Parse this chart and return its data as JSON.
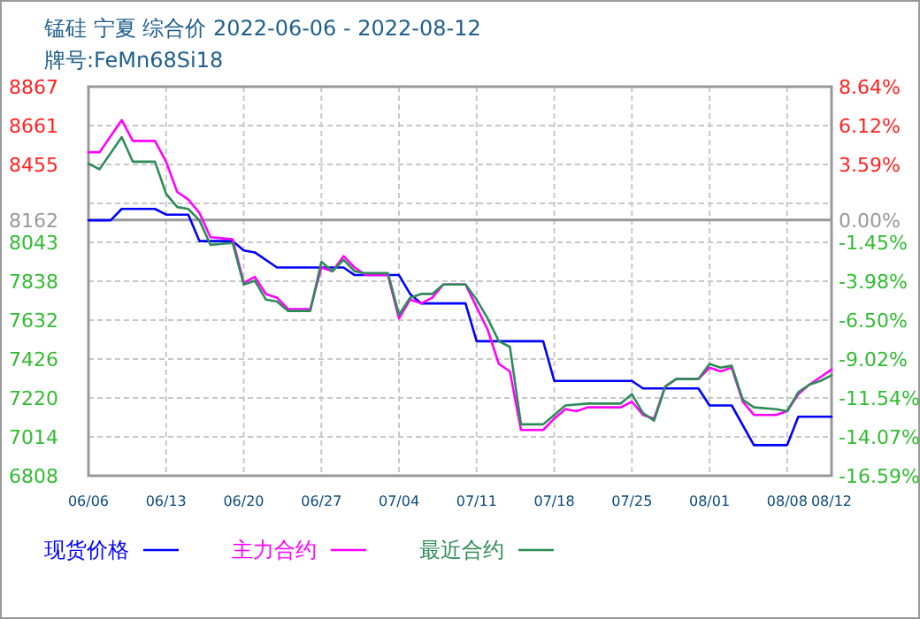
{
  "chart_data": {
    "type": "line",
    "title": "锰硅 宁夏 综合价 2022-06-06 - 2022-08-12",
    "subtitle": "牌号:FeMn68Si18",
    "xlim": [
      "2022-06-06",
      "2022-08-12"
    ],
    "xticks": [
      {
        "value": "2022-06-06",
        "label": "06/06"
      },
      {
        "value": "2022-06-13",
        "label": "06/13"
      },
      {
        "value": "2022-06-20",
        "label": "06/20"
      },
      {
        "value": "2022-06-27",
        "label": "06/27"
      },
      {
        "value": "2022-07-04",
        "label": "07/04"
      },
      {
        "value": "2022-07-11",
        "label": "07/11"
      },
      {
        "value": "2022-07-18",
        "label": "07/18"
      },
      {
        "value": "2022-07-25",
        "label": "07/25"
      },
      {
        "value": "2022-08-01",
        "label": "08/01"
      },
      {
        "value": "2022-08-08",
        "label": "08/08"
      },
      {
        "value": "2022-08-12",
        "label": "08/12"
      }
    ],
    "ylim": [
      6808,
      8867
    ],
    "yticks": [
      6808,
      7014,
      7220,
      7426,
      7632,
      7838,
      8043,
      8162,
      {
        "value": 8249,
        "label": null
      },
      8455,
      8661,
      8867
    ],
    "y2lim": [
      -16.59,
      8.64
    ],
    "y2ticks": [
      {
        "value": -16.59,
        "label": "-16.59%"
      },
      {
        "value": -14.07,
        "label": "-14.07%"
      },
      {
        "value": -11.54,
        "label": "-11.54%"
      },
      {
        "value": -9.02,
        "label": "-9.02%"
      },
      {
        "value": -6.5,
        "label": "-6.50%"
      },
      {
        "value": -3.98,
        "label": "-3.98%"
      },
      {
        "value": -1.45,
        "label": "-1.45%"
      },
      {
        "value": 0,
        "label": "0.00%"
      },
      {
        "value": 3.59,
        "label": "3.59%"
      },
      {
        "value": 6.12,
        "label": "6.12%"
      },
      {
        "value": 8.64,
        "label": "8.64%"
      }
    ],
    "ref_lines": [
      {
        "axis": "y",
        "value": 8162,
        "color": "#999999"
      }
    ],
    "grid": true,
    "legend": "bottom",
    "series": [
      {
        "name": "现货价格",
        "color": "#0000ff",
        "x": [
          "2022-06-06",
          "2022-06-08",
          "2022-06-09",
          "2022-06-12",
          "2022-06-13",
          "2022-06-15",
          "2022-06-16",
          "2022-06-19",
          "2022-06-20",
          "2022-06-21",
          "2022-06-23",
          "2022-06-29",
          "2022-06-30",
          "2022-07-04",
          "2022-07-05",
          "2022-07-06",
          "2022-07-10",
          "2022-07-11",
          "2022-07-17",
          "2022-07-18",
          "2022-07-25",
          "2022-07-26",
          "2022-07-31",
          "2022-08-01",
          "2022-08-03",
          "2022-08-05",
          "2022-08-08",
          "2022-08-09",
          "2022-08-12"
        ],
        "values": [
          8160,
          8160,
          8220,
          8220,
          8190,
          8190,
          8050,
          8050,
          8000,
          7990,
          7910,
          7910,
          7870,
          7870,
          7770,
          7720,
          7720,
          7520,
          7520,
          7310,
          7310,
          7270,
          7270,
          7180,
          7180,
          6970,
          6970,
          7120,
          7120
        ]
      },
      {
        "name": "主力合约",
        "color": "#ff00ff",
        "x": [
          "2022-06-06",
          "2022-06-07",
          "2022-06-09",
          "2022-06-10",
          "2022-06-12",
          "2022-06-13",
          "2022-06-14",
          "2022-06-15",
          "2022-06-16",
          "2022-06-17",
          "2022-06-19",
          "2022-06-20",
          "2022-06-21",
          "2022-06-22",
          "2022-06-23",
          "2022-06-24",
          "2022-06-26",
          "2022-06-27",
          "2022-06-28",
          "2022-06-29",
          "2022-06-30",
          "2022-07-01",
          "2022-07-03",
          "2022-07-04",
          "2022-07-05",
          "2022-07-06",
          "2022-07-07",
          "2022-07-08",
          "2022-07-10",
          "2022-07-11",
          "2022-07-12",
          "2022-07-13",
          "2022-07-14",
          "2022-07-15",
          "2022-07-17",
          "2022-07-18",
          "2022-07-19",
          "2022-07-20",
          "2022-07-21",
          "2022-07-24",
          "2022-07-25",
          "2022-07-26",
          "2022-07-27",
          "2022-07-28",
          "2022-07-29",
          "2022-07-31",
          "2022-08-01",
          "2022-08-02",
          "2022-08-03",
          "2022-08-04",
          "2022-08-05",
          "2022-08-07",
          "2022-08-08",
          "2022-08-09",
          "2022-08-10",
          "2022-08-11",
          "2022-08-12"
        ],
        "values": [
          8520,
          8520,
          8690,
          8580,
          8580,
          8470,
          8310,
          8270,
          8200,
          8070,
          8060,
          7830,
          7860,
          7770,
          7750,
          7690,
          7690,
          7910,
          7890,
          7970,
          7910,
          7870,
          7870,
          7640,
          7740,
          7720,
          7750,
          7820,
          7820,
          7700,
          7580,
          7400,
          7360,
          7050,
          7050,
          7110,
          7160,
          7150,
          7170,
          7170,
          7200,
          7130,
          7110,
          7280,
          7320,
          7320,
          7380,
          7360,
          7380,
          7200,
          7130,
          7130,
          7150,
          7240,
          7290,
          7330,
          7370
        ]
      },
      {
        "name": "最近合约",
        "color": "#2e8b57",
        "x": [
          "2022-06-06",
          "2022-06-07",
          "2022-06-09",
          "2022-06-10",
          "2022-06-12",
          "2022-06-13",
          "2022-06-14",
          "2022-06-15",
          "2022-06-16",
          "2022-06-17",
          "2022-06-19",
          "2022-06-20",
          "2022-06-21",
          "2022-06-22",
          "2022-06-23",
          "2022-06-24",
          "2022-06-26",
          "2022-06-27",
          "2022-06-28",
          "2022-06-29",
          "2022-06-30",
          "2022-07-01",
          "2022-07-03",
          "2022-07-04",
          "2022-07-05",
          "2022-07-06",
          "2022-07-07",
          "2022-07-08",
          "2022-07-10",
          "2022-07-11",
          "2022-07-12",
          "2022-07-13",
          "2022-07-14",
          "2022-07-15",
          "2022-07-17",
          "2022-07-18",
          "2022-07-19",
          "2022-07-21",
          "2022-07-24",
          "2022-07-25",
          "2022-07-26",
          "2022-07-27",
          "2022-07-28",
          "2022-07-29",
          "2022-07-31",
          "2022-08-01",
          "2022-08-02",
          "2022-08-03",
          "2022-08-04",
          "2022-08-05",
          "2022-08-07",
          "2022-08-08",
          "2022-08-09",
          "2022-08-10",
          "2022-08-11",
          "2022-08-12"
        ],
        "values": [
          8460,
          8430,
          8600,
          8470,
          8470,
          8300,
          8230,
          8220,
          8160,
          8030,
          8040,
          7820,
          7840,
          7740,
          7730,
          7680,
          7680,
          7940,
          7890,
          7950,
          7890,
          7880,
          7880,
          7660,
          7750,
          7770,
          7770,
          7820,
          7820,
          7740,
          7640,
          7520,
          7490,
          7080,
          7080,
          7130,
          7180,
          7190,
          7190,
          7240,
          7140,
          7100,
          7280,
          7320,
          7320,
          7400,
          7380,
          7390,
          7210,
          7170,
          7160,
          7150,
          7250,
          7290,
          7310,
          7340
        ]
      }
    ]
  }
}
